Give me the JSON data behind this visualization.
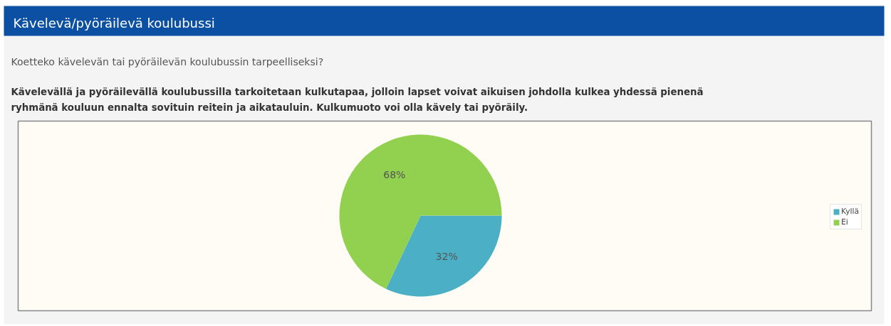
{
  "chart_data": {
    "type": "pie",
    "title": "Kävelevä/pyöräilevä koulubussi",
    "subtitle": "Koetteko kävelevän tai pyöräilevän koulubussin tarpeelliseksi?",
    "annotations": [
      "Kävelevällä ja pyöräilevällä koulubussilla tarkoitetaan kulkutapaa, jolloin lapset voivat aikuisen johdolla kulkea yhdessä pienenä ryhmänä kouluun ennalta sovituin reitein ja aikatauluin. Kulkumuoto voi olla kävely tai pyöräily."
    ],
    "categories": [
      "Kyllä",
      "Ei"
    ],
    "values": [
      32,
      68
    ],
    "colors": [
      "#4bafc6",
      "#92d050"
    ],
    "value_labels": [
      "32%",
      "68%"
    ],
    "legend": "right"
  }
}
